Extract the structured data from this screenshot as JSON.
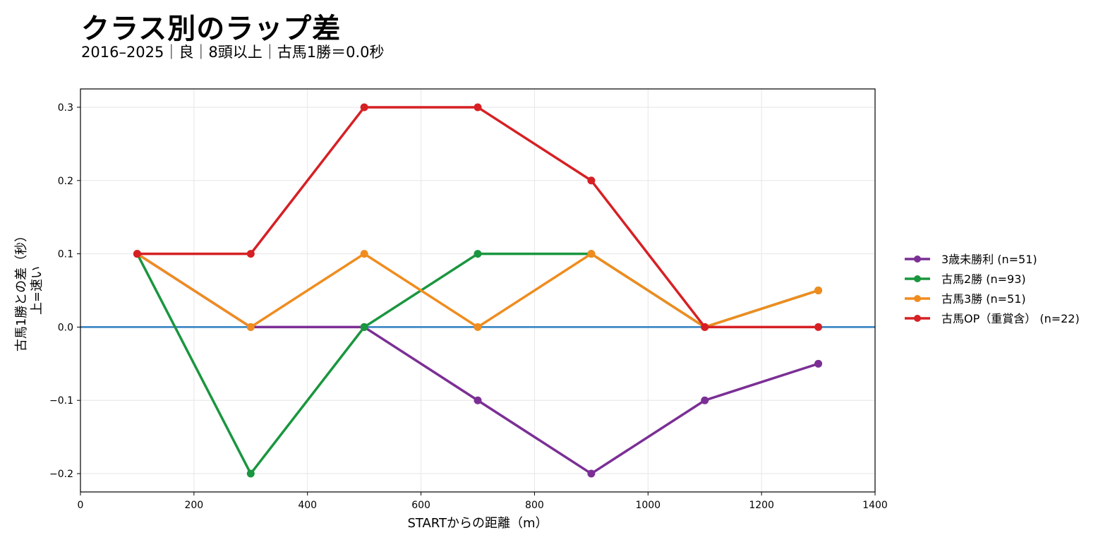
{
  "chart_data": {
    "type": "line",
    "title": "クラス別のラップ差",
    "subtitle": "2016–2025｜良｜8頭以上｜古馬1勝＝0.0秒",
    "xlabel": "STARTからの距離（m）",
    "ylabel_line1": "古馬1勝との差（秒）",
    "ylabel_line2": "上=速い",
    "xlim": [
      0,
      1400
    ],
    "ylim": [
      -0.225,
      0.325
    ],
    "xticks": [
      0,
      200,
      400,
      600,
      800,
      1000,
      1200,
      1400
    ],
    "yticks": [
      -0.2,
      -0.1,
      0.0,
      0.1,
      0.2,
      0.3
    ],
    "ytick_labels": [
      "−0.2",
      "−0.1",
      "0.0",
      "0.1",
      "0.2",
      "0.3"
    ],
    "grid": true,
    "legend_position": "right",
    "reference_line": {
      "y": 0.0,
      "color": "#2f7fc1"
    },
    "x": [
      100,
      300,
      500,
      700,
      900,
      1100,
      1300
    ],
    "series": [
      {
        "name": "3歳未勝利 (n=51)",
        "color": "#7b2f95",
        "values": [
          0.1,
          0.0,
          0.0,
          -0.1,
          -0.2,
          -0.1,
          -0.05
        ]
      },
      {
        "name": "古馬2勝 (n=93)",
        "color": "#1a963f",
        "values": [
          0.1,
          -0.2,
          0.0,
          0.1,
          0.1,
          0.0,
          0.05
        ]
      },
      {
        "name": "古馬3勝 (n=51)",
        "color": "#f08c1e",
        "values": [
          0.1,
          0.0,
          0.1,
          0.0,
          0.1,
          0.0,
          0.05
        ]
      },
      {
        "name": "古馬OP（重賞含） (n=22)",
        "color": "#d62024",
        "values": [
          0.1,
          0.1,
          0.3,
          0.3,
          0.2,
          0.0,
          0.0
        ]
      }
    ]
  }
}
